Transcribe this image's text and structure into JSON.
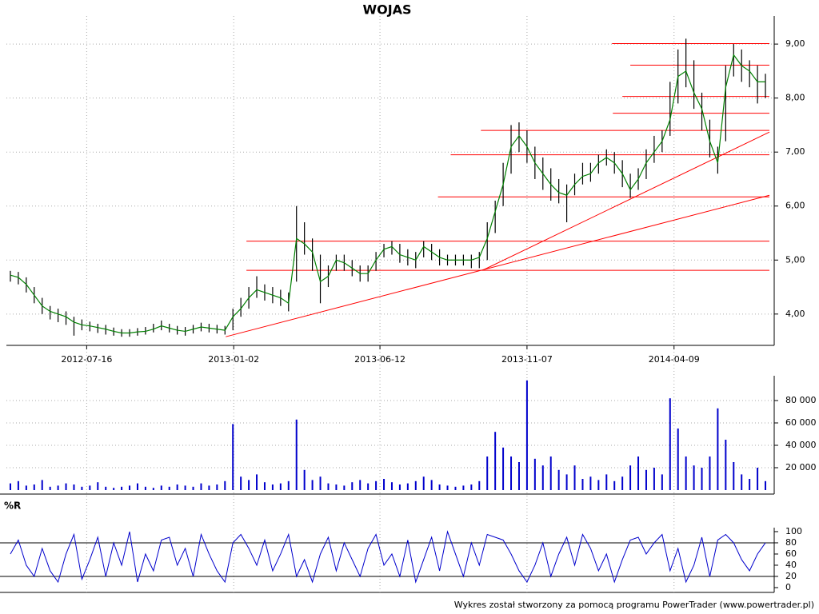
{
  "chart_data": [
    {
      "type": "candlestick",
      "title": "WOJAS",
      "color": "#000000",
      "line_color": "#008000",
      "annotation_color": "#ff0000",
      "xlim": [
        -0.5,
        95.5
      ],
      "xticks": [
        {
          "value": 9.6,
          "label": "2012-07-16"
        },
        {
          "value": 28.1,
          "label": "2013-01-02"
        },
        {
          "value": 46.5,
          "label": "2013-06-12"
        },
        {
          "value": 65.0,
          "label": "2013-11-07"
        },
        {
          "value": 83.5,
          "label": "2014-04-09"
        }
      ],
      "ylim": [
        3.42,
        9.52
      ],
      "yticks": [
        {
          "value": 4,
          "label": "4,00"
        },
        {
          "value": 5,
          "label": "5,00"
        },
        {
          "value": 6,
          "label": "6,00"
        },
        {
          "value": 7,
          "label": "7,00"
        },
        {
          "value": 8,
          "label": "8,00"
        },
        {
          "value": 9,
          "label": "9,00"
        }
      ],
      "grid": true,
      "close": [
        4.72,
        4.68,
        4.55,
        4.35,
        4.15,
        4.05,
        4.0,
        3.95,
        3.85,
        3.8,
        3.78,
        3.75,
        3.72,
        3.68,
        3.65,
        3.65,
        3.67,
        3.68,
        3.72,
        3.78,
        3.74,
        3.7,
        3.68,
        3.72,
        3.76,
        3.74,
        3.72,
        3.7,
        3.95,
        4.1,
        4.3,
        4.45,
        4.4,
        4.35,
        4.3,
        4.2,
        5.4,
        5.3,
        5.15,
        4.6,
        4.7,
        5.0,
        4.95,
        4.85,
        4.75,
        4.75,
        5.0,
        5.2,
        5.25,
        5.1,
        5.05,
        5.0,
        5.25,
        5.15,
        5.05,
        5.0,
        5.0,
        5.0,
        5.0,
        5.05,
        5.4,
        5.9,
        6.4,
        7.1,
        7.3,
        7.1,
        6.8,
        6.6,
        6.4,
        6.25,
        6.2,
        6.4,
        6.55,
        6.6,
        6.8,
        6.9,
        6.8,
        6.6,
        6.3,
        6.5,
        6.8,
        7.0,
        7.2,
        7.6,
        8.4,
        8.5,
        8.1,
        7.8,
        7.2,
        6.8,
        8.2,
        8.8,
        8.6,
        8.5,
        8.3,
        8.3
      ],
      "high": [
        4.8,
        4.78,
        4.68,
        4.5,
        4.3,
        4.15,
        4.1,
        4.05,
        3.95,
        3.9,
        3.86,
        3.82,
        3.8,
        3.75,
        3.72,
        3.72,
        3.74,
        3.76,
        3.82,
        3.88,
        3.82,
        3.78,
        3.76,
        3.8,
        3.84,
        3.82,
        3.8,
        3.78,
        4.1,
        4.3,
        4.5,
        4.7,
        4.55,
        4.5,
        4.45,
        4.4,
        6.0,
        5.7,
        5.4,
        5.1,
        4.9,
        5.1,
        5.1,
        5.0,
        4.9,
        4.9,
        5.15,
        5.3,
        5.35,
        5.3,
        5.2,
        5.15,
        5.35,
        5.3,
        5.2,
        5.1,
        5.1,
        5.1,
        5.1,
        5.15,
        5.7,
        6.1,
        6.8,
        7.5,
        7.55,
        7.4,
        7.1,
        6.9,
        6.7,
        6.5,
        6.4,
        6.6,
        6.8,
        6.8,
        6.95,
        7.05,
        7.0,
        6.85,
        6.6,
        6.7,
        7.05,
        7.3,
        7.4,
        8.3,
        8.9,
        9.1,
        8.7,
        8.1,
        7.6,
        7.1,
        8.6,
        9.0,
        8.9,
        8.7,
        8.6,
        8.45
      ],
      "low": [
        4.6,
        4.55,
        4.4,
        4.2,
        4.0,
        3.9,
        3.85,
        3.8,
        3.6,
        3.7,
        3.68,
        3.65,
        3.62,
        3.6,
        3.58,
        3.58,
        3.6,
        3.62,
        3.66,
        3.7,
        3.66,
        3.62,
        3.6,
        3.64,
        3.68,
        3.66,
        3.64,
        3.62,
        3.7,
        3.95,
        4.1,
        4.3,
        4.25,
        4.2,
        4.15,
        4.05,
        4.6,
        5.1,
        4.8,
        4.2,
        4.5,
        4.8,
        4.8,
        4.7,
        4.6,
        4.6,
        4.8,
        5.05,
        5.1,
        4.95,
        4.9,
        4.85,
        5.05,
        5.0,
        4.9,
        4.9,
        4.9,
        4.9,
        4.85,
        4.85,
        5.0,
        5.5,
        6.0,
        6.6,
        7.0,
        6.8,
        6.5,
        6.3,
        6.1,
        6.05,
        5.7,
        6.2,
        6.4,
        6.45,
        6.6,
        6.75,
        6.6,
        6.35,
        6.15,
        6.3,
        6.5,
        6.8,
        7.0,
        7.3,
        7.9,
        8.2,
        7.8,
        7.4,
        6.9,
        6.6,
        7.2,
        8.4,
        8.3,
        8.2,
        7.9,
        8.0
      ],
      "lines": [
        {
          "x": [
            29.7,
            95.5
          ],
          "y": [
            4.81,
            4.81
          ]
        },
        {
          "x": [
            29.7,
            95.5
          ],
          "y": [
            5.35,
            5.35
          ]
        },
        {
          "x": [
            53.8,
            95.5
          ],
          "y": [
            6.17,
            6.17
          ]
        },
        {
          "x": [
            55.4,
            95.5
          ],
          "y": [
            6.95,
            6.95
          ]
        },
        {
          "x": [
            59.2,
            95.5
          ],
          "y": [
            7.4,
            7.4
          ]
        },
        {
          "x": [
            75.8,
            95.5
          ],
          "y": [
            7.72,
            7.72
          ]
        },
        {
          "x": [
            77.0,
            95.5
          ],
          "y": [
            8.03,
            8.03
          ]
        },
        {
          "x": [
            78.0,
            95.5
          ],
          "y": [
            8.61,
            8.61
          ]
        },
        {
          "x": [
            75.7,
            95.5
          ],
          "y": [
            9.01,
            9.01
          ]
        },
        {
          "x": [
            27.1,
            95.5
          ],
          "y": [
            3.58,
            6.2
          ]
        },
        {
          "x": [
            59.4,
            95.5
          ],
          "y": [
            4.81,
            7.37
          ]
        }
      ]
    },
    {
      "type": "bar",
      "color": "#0000cc",
      "ylim": [
        -3570,
        102140
      ],
      "yticks": [
        {
          "value": 20000,
          "label": "20 000"
        },
        {
          "value": 40000,
          "label": "40 000"
        },
        {
          "value": 60000,
          "label": "60 000"
        },
        {
          "value": 80000,
          "label": "80 000"
        }
      ],
      "grid": true,
      "values": [
        6000,
        8000,
        4000,
        5000,
        9000,
        3000,
        4000,
        6000,
        5000,
        3000,
        4000,
        7000,
        3000,
        2000,
        3000,
        4000,
        6000,
        3000,
        2000,
        4000,
        3000,
        5000,
        4000,
        3000,
        6000,
        4000,
        5000,
        8000,
        59000,
        12000,
        9000,
        14000,
        7000,
        5000,
        6000,
        8000,
        63000,
        18000,
        9000,
        12000,
        6000,
        5000,
        4000,
        7000,
        9000,
        6000,
        8000,
        10000,
        7000,
        5000,
        6000,
        8000,
        12000,
        9000,
        5000,
        4000,
        3000,
        4000,
        5000,
        8000,
        30000,
        52000,
        38000,
        30000,
        25000,
        98000,
        28000,
        22000,
        30000,
        18000,
        14000,
        22000,
        10000,
        12000,
        9000,
        14000,
        8000,
        12000,
        22000,
        30000,
        18000,
        20000,
        14000,
        82000,
        55000,
        30000,
        22000,
        20000,
        30000,
        73000,
        45000,
        25000,
        14000,
        10000,
        20000,
        8000
      ]
    },
    {
      "type": "line",
      "title": "%R",
      "color": "#0000cc",
      "ylim": [
        -8.6,
        107.1
      ],
      "yticks": [
        0,
        20,
        40,
        60,
        80,
        100
      ],
      "hlines": [
        20,
        80
      ],
      "values": [
        60,
        85,
        40,
        20,
        70,
        30,
        10,
        60,
        95,
        15,
        50,
        90,
        20,
        80,
        40,
        100,
        10,
        60,
        30,
        85,
        90,
        40,
        70,
        20,
        95,
        60,
        30,
        10,
        80,
        95,
        70,
        40,
        85,
        30,
        60,
        95,
        20,
        50,
        10,
        60,
        90,
        30,
        80,
        50,
        20,
        70,
        95,
        40,
        60,
        20,
        85,
        10,
        50,
        90,
        30,
        100,
        60,
        20,
        80,
        40,
        95,
        90,
        85,
        60,
        30,
        10,
        40,
        80,
        20,
        60,
        90,
        40,
        95,
        70,
        30,
        60,
        10,
        50,
        85,
        90,
        60,
        80,
        95,
        30,
        70,
        10,
        40,
        90,
        20,
        85,
        95,
        80,
        50,
        30,
        60,
        80
      ]
    }
  ],
  "footer": "Wykres został stworzony za pomocą programu PowerTrader (www.powertrader.pl)"
}
